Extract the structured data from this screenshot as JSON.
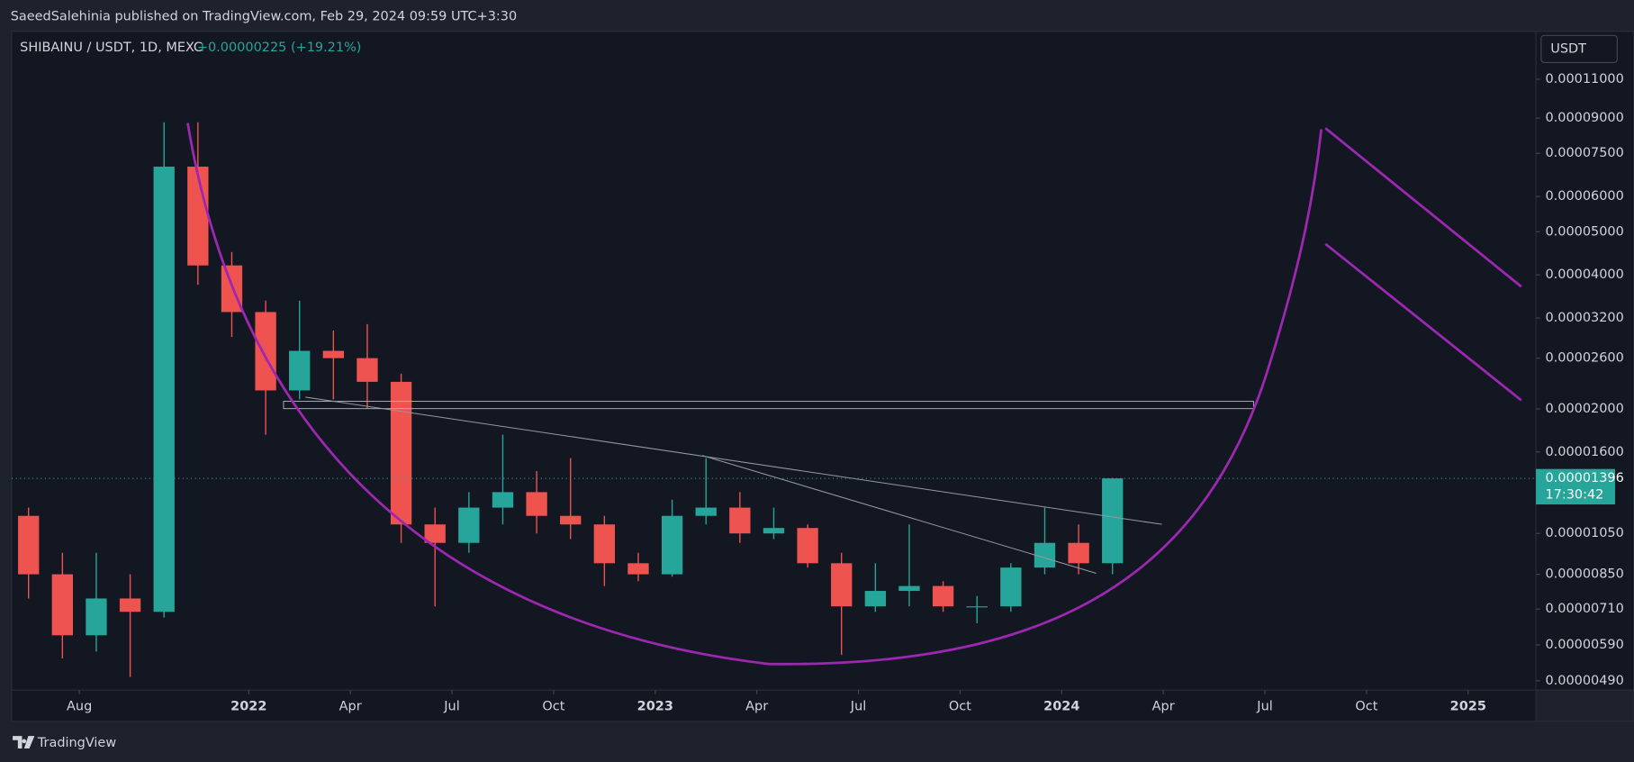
{
  "chart_data": {
    "type": "candlestick",
    "header": "SaeedSalehinia published on TradingView.com, Feb 29, 2024 09:59 UTC+3:30",
    "title": "SHIBAINU / USDT, 1D, MEXC",
    "change": "+0.00000225 (+19.21%)",
    "currency": "USDT",
    "brand": "TradingView",
    "log_scale": true,
    "up_color": "#26a69a",
    "down_color": "#ef5350",
    "x": [
      "2021-06",
      "2021-07",
      "2021-08",
      "2021-09",
      "2021-10",
      "2021-11",
      "2021-12",
      "2022-01",
      "2022-02",
      "2022-03",
      "2022-04",
      "2022-05",
      "2022-06",
      "2022-07",
      "2022-08",
      "2022-09",
      "2022-10",
      "2022-11",
      "2022-12",
      "2023-01",
      "2023-02",
      "2023-03",
      "2023-04",
      "2023-05",
      "2023-06",
      "2023-07",
      "2023-08",
      "2023-09",
      "2023-10",
      "2023-11",
      "2023-12",
      "2024-01",
      "2024-02"
    ],
    "open": [
      1.15e-05,
      8.5e-06,
      6.2e-06,
      7.5e-06,
      7e-06,
      7e-05,
      4.2e-05,
      3.3e-05,
      2.2e-05,
      2.7e-05,
      2.6e-05,
      2.3e-05,
      1.1e-05,
      1e-05,
      1.2e-05,
      1.3e-05,
      1.15e-05,
      1.1e-05,
      9e-06,
      8.5e-06,
      1.15e-05,
      1.2e-05,
      1.05e-05,
      1.08e-05,
      9e-06,
      7.2e-06,
      7.8e-06,
      8e-06,
      7.2e-06,
      7.2e-06,
      8.8e-06,
      1e-05,
      9e-06
    ],
    "high": [
      1.2e-05,
      9.5e-06,
      9.5e-06,
      8.5e-06,
      8.8e-05,
      8.8e-05,
      4.5e-05,
      3.5e-05,
      3.5e-05,
      3e-05,
      3.1e-05,
      2.4e-05,
      1.2e-05,
      1.3e-05,
      1.75e-05,
      1.45e-05,
      1.55e-05,
      1.15e-05,
      9.5e-06,
      1.25e-05,
      1.55e-05,
      1.3e-05,
      1.2e-05,
      1.1e-05,
      9.5e-06,
      9e-06,
      1.1e-05,
      8.2e-06,
      7.6e-06,
      9e-06,
      1.2e-05,
      1.1e-05,
      1.4e-05
    ],
    "low": [
      7.5e-06,
      5.5e-06,
      5.7e-06,
      5e-06,
      6.8e-06,
      3.8e-05,
      2.9e-05,
      1.75e-05,
      2.1e-05,
      2.1e-05,
      2e-05,
      1e-05,
      7.2e-06,
      9.5e-06,
      1.1e-05,
      1.05e-05,
      1.02e-05,
      8e-06,
      8.2e-06,
      8.4e-06,
      1.1e-05,
      1e-05,
      1.02e-05,
      8.8e-06,
      5.6e-06,
      7e-06,
      7.2e-06,
      7e-06,
      6.6e-06,
      7e-06,
      8.5e-06,
      8.5e-06,
      8.5e-06
    ],
    "close": [
      8.5e-06,
      6.2e-06,
      7.5e-06,
      7e-06,
      7e-05,
      4.2e-05,
      3.3e-05,
      2.2e-05,
      2.7e-05,
      2.6e-05,
      2.3e-05,
      1.1e-05,
      1e-05,
      1.2e-05,
      1.3e-05,
      1.15e-05,
      1.1e-05,
      9e-06,
      8.5e-06,
      1.15e-05,
      1.2e-05,
      1.05e-05,
      1.08e-05,
      9e-06,
      7.2e-06,
      7.8e-06,
      8e-06,
      7.2e-06,
      7.2e-06,
      8.8e-06,
      1e-05,
      9e-06,
      1.396e-05
    ],
    "xlim": [
      "2021-06",
      "2025-03"
    ],
    "xticks": [
      {
        "value": "2021-08",
        "label": "Aug"
      },
      {
        "value": "2022-01",
        "label": "2022"
      },
      {
        "value": "2022-04",
        "label": "Apr"
      },
      {
        "value": "2022-07",
        "label": "Jul"
      },
      {
        "value": "2022-10",
        "label": "Oct"
      },
      {
        "value": "2023-01",
        "label": "2023"
      },
      {
        "value": "2023-04",
        "label": "Apr"
      },
      {
        "value": "2023-07",
        "label": "Jul"
      },
      {
        "value": "2023-10",
        "label": "Oct"
      },
      {
        "value": "2024-01",
        "label": "2024"
      },
      {
        "value": "2024-04",
        "label": "Apr"
      },
      {
        "value": "2024-07",
        "label": "Jul"
      },
      {
        "value": "2024-10",
        "label": "Oct"
      },
      {
        "value": "2025-01",
        "label": "2025"
      }
    ],
    "ylim": [
      4.67e-06,
      0.000141
    ],
    "yticks": [
      {
        "value": 0.00011,
        "label": "0.00011000"
      },
      {
        "value": 9e-05,
        "label": "0.00009000"
      },
      {
        "value": 7.5e-05,
        "label": "0.00007500"
      },
      {
        "value": 6e-05,
        "label": "0.00006000"
      },
      {
        "value": 5e-05,
        "label": "0.00005000"
      },
      {
        "value": 4e-05,
        "label": "0.00004000"
      },
      {
        "value": 3.2e-05,
        "label": "0.00003200"
      },
      {
        "value": 2.6e-05,
        "label": "0.00002600"
      },
      {
        "value": 2e-05,
        "label": "0.00002000"
      },
      {
        "value": 1.6e-05,
        "label": "0.00001600"
      },
      {
        "value": 1.05e-05,
        "label": "0.00001050"
      },
      {
        "value": 8.5e-06,
        "label": "0.00000850"
      },
      {
        "value": 7.1e-06,
        "label": "0.00000710"
      },
      {
        "value": 5.9e-06,
        "label": "0.00000590"
      },
      {
        "value": 4.9e-06,
        "label": "0.00000490"
      }
    ],
    "last_price": {
      "value": 1.396e-05,
      "label": "0.00001396"
    },
    "countdown": "17:30:42"
  }
}
